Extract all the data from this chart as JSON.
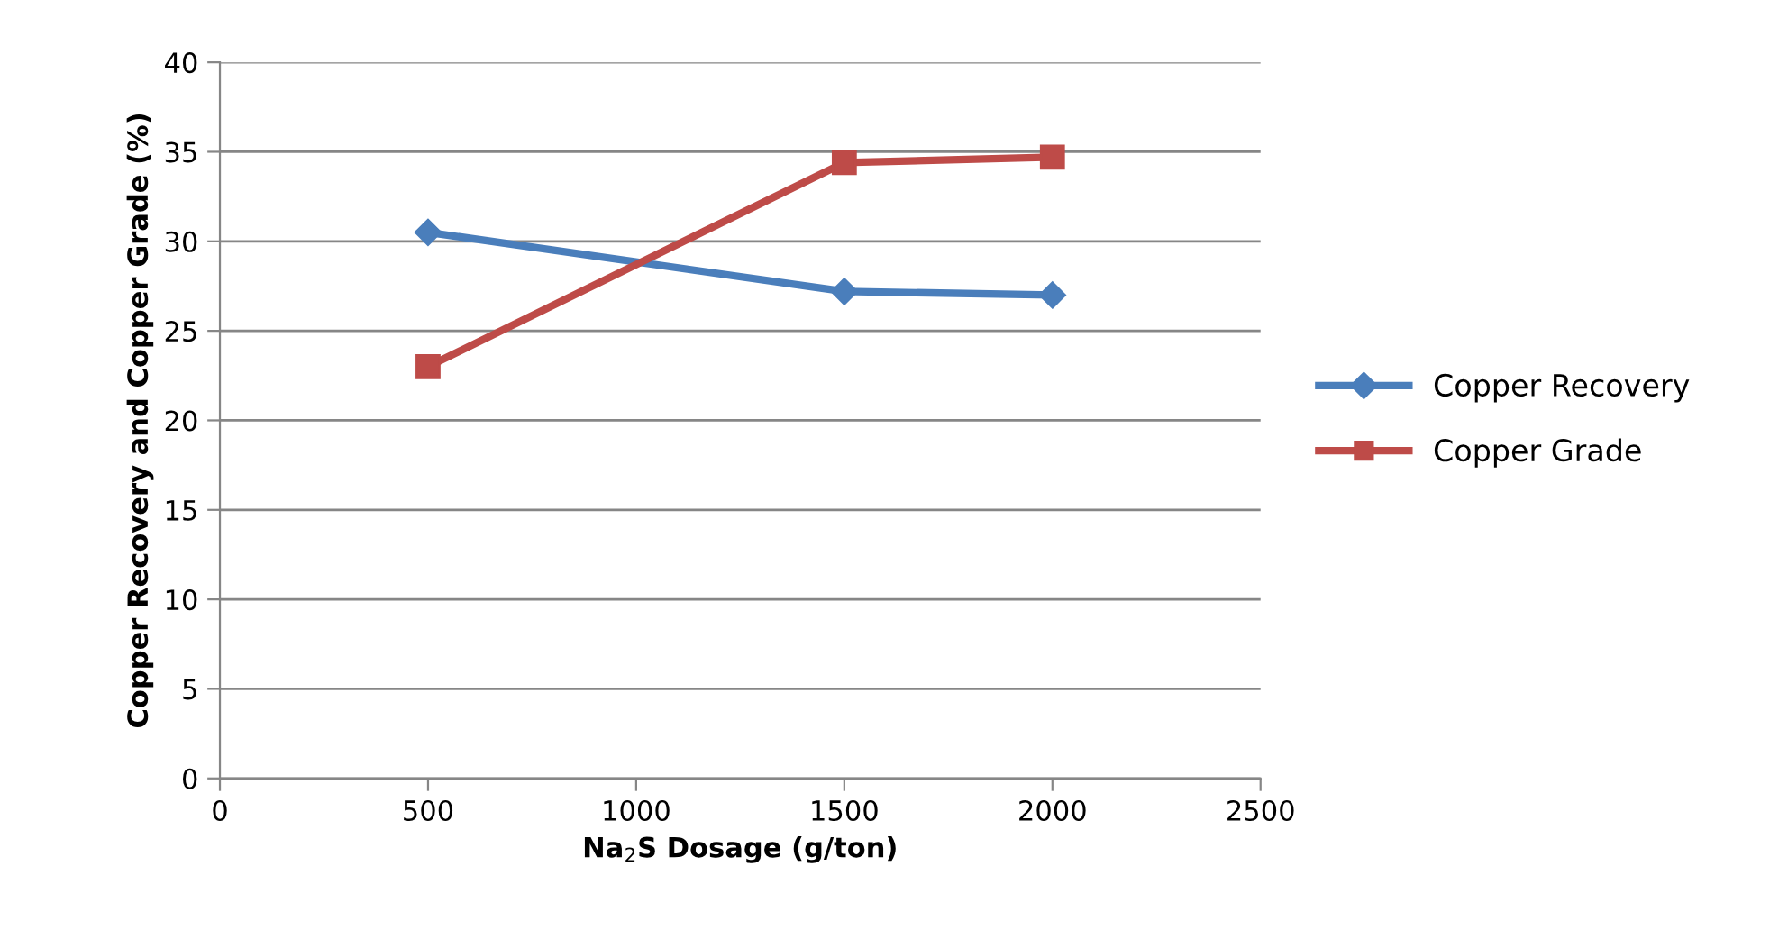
{
  "chart_data": {
    "type": "line",
    "xlabel": "Na$_{2}$S Dosage (g/ton)",
    "ylabel": "Copper Recovery and Copper Grade (%)",
    "x": [
      500,
      1500,
      2000
    ],
    "series": [
      {
        "name": "Copper Recovery",
        "color": "#4a7ebb",
        "marker": "diamond",
        "values": [
          30.5,
          27.2,
          27.0
        ]
      },
      {
        "name": "Copper Grade",
        "color": "#be4b48",
        "marker": "square",
        "values": [
          23.0,
          34.4,
          34.7
        ]
      }
    ],
    "xlim": [
      0,
      2500
    ],
    "xticks": [
      0,
      500,
      1000,
      1500,
      2000,
      2500
    ],
    "ylim": [
      0,
      40
    ],
    "yticks": [
      0,
      5,
      10,
      15,
      20,
      25,
      30,
      35,
      40
    ],
    "grid": "y",
    "legend": "right",
    "line_style": "solid"
  }
}
